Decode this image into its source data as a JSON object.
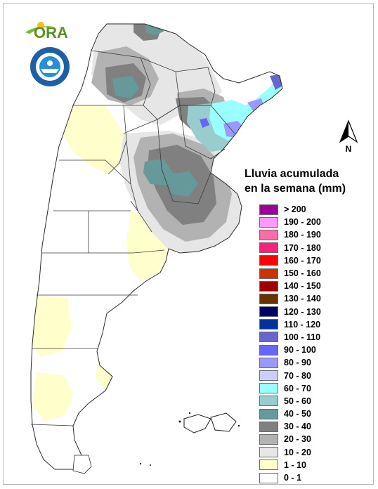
{
  "header": {
    "logo_text": "ORA",
    "north_label": "N"
  },
  "legend": {
    "title_line1": "Lluvia acumulada",
    "title_line2": "en la semana (mm)",
    "items": [
      {
        "label": "> 200",
        "color": "#9c009c"
      },
      {
        "label": "190 - 200",
        "color": "#ff99ff"
      },
      {
        "label": "180 - 190",
        "color": "#ff6aa8"
      },
      {
        "label": "170 - 180",
        "color": "#ff1f7f"
      },
      {
        "label": "160 - 170",
        "color": "#ff0000"
      },
      {
        "label": "150 - 160",
        "color": "#cc3300"
      },
      {
        "label": "140 - 150",
        "color": "#9e0000"
      },
      {
        "label": "130 - 140",
        "color": "#663300"
      },
      {
        "label": "120 - 130",
        "color": "#000066"
      },
      {
        "label": "110 - 120",
        "color": "#003399"
      },
      {
        "label": "100 - 110",
        "color": "#6666cc"
      },
      {
        "label": "90 - 100",
        "color": "#6666ff"
      },
      {
        "label": "80 - 90",
        "color": "#9999ff"
      },
      {
        "label": "70 - 80",
        "color": "#ccccff"
      },
      {
        "label": "60 - 70",
        "color": "#99ffff"
      },
      {
        "label": "50 - 60",
        "color": "#99cccc"
      },
      {
        "label": "40 - 50",
        "color": "#669999"
      },
      {
        "label": "30 - 40",
        "color": "#808080"
      },
      {
        "label": "20 - 30",
        "color": "#b2b2b2"
      },
      {
        "label": "10 - 20",
        "color": "#e6e6e6"
      },
      {
        "label": "1 - 10",
        "color": "#ffffcc"
      },
      {
        "label": "0 - 1",
        "color": "#ffffff"
      }
    ]
  }
}
